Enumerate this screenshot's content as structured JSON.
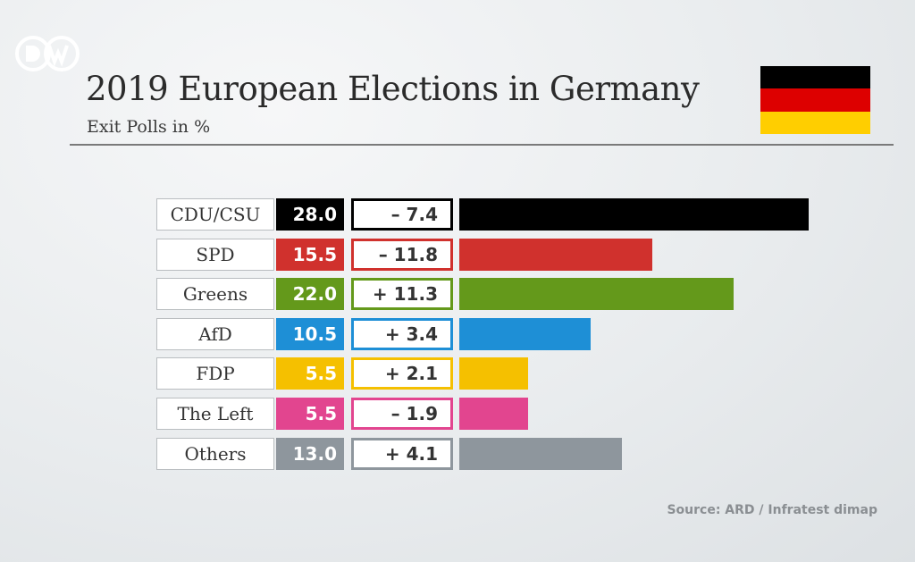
{
  "header": {
    "logo_text": "DW",
    "title": "2019 European Elections in Germany",
    "subtitle": "Exit Polls in %"
  },
  "flag_colors": [
    "#000000",
    "#dd0000",
    "#ffce00"
  ],
  "source": "Source: ARD / Infratest dimap",
  "chart_data": {
    "type": "bar",
    "orientation": "horizontal",
    "title": "2019 European Elections in Germany",
    "subtitle": "Exit Polls in %",
    "categories": [
      "CDU/CSU",
      "SPD",
      "Greens",
      "AfD",
      "FDP",
      "The Left",
      "Others"
    ],
    "values": [
      28.0,
      15.5,
      22.0,
      10.5,
      5.5,
      5.5,
      13.0
    ],
    "value_labels": [
      "28.0",
      "15.5",
      "22.0",
      "10.5",
      "5.5",
      "5.5",
      "13.0"
    ],
    "change_labels": [
      "– 7.4",
      "– 11.8",
      "+ 11.3",
      "+ 3.4",
      "+ 2.1",
      "– 1.9",
      "+ 4.1"
    ],
    "changes": [
      -7.4,
      -11.8,
      11.3,
      3.4,
      2.1,
      -1.9,
      4.1
    ],
    "colors": [
      "#000000",
      "#d0312d",
      "#64991b",
      "#1e8fd6",
      "#f5c000",
      "#e2458f",
      "#8e969d"
    ],
    "xlim": [
      0,
      28
    ]
  }
}
